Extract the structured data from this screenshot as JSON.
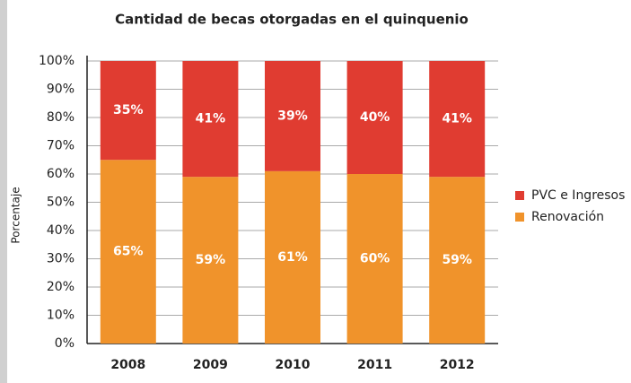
{
  "chart_data": {
    "type": "stacked_bar",
    "title": "Cantidad de becas otorgadas en el quinquenio",
    "ylabel": "Porcentaje",
    "categories": [
      "2008",
      "2009",
      "2010",
      "2011",
      "2012"
    ],
    "series": [
      {
        "name": "Renovación",
        "color": "#f0932b",
        "values": [
          65,
          59,
          61,
          60,
          59
        ],
        "value_labels": [
          "65%",
          "59%",
          "61%",
          "60%",
          "59%"
        ]
      },
      {
        "name": "PVC e Ingresos",
        "color": "#e03c31",
        "values": [
          35,
          41,
          39,
          40,
          41
        ],
        "value_labels": [
          "35%",
          "41%",
          "39%",
          "40%",
          "41%"
        ]
      }
    ],
    "ylim": [
      0,
      100
    ],
    "yticks": [
      {
        "value": 0,
        "label": "0%"
      },
      {
        "value": 10,
        "label": "10%"
      },
      {
        "value": 20,
        "label": "20%"
      },
      {
        "value": 30,
        "label": "30%"
      },
      {
        "value": 40,
        "label": "40%"
      },
      {
        "value": 50,
        "label": "50%"
      },
      {
        "value": 60,
        "label": "60%"
      },
      {
        "value": 70,
        "label": "70%"
      },
      {
        "value": 80,
        "label": "80%"
      },
      {
        "value": 90,
        "label": "90%"
      },
      {
        "value": 100,
        "label": "100%"
      }
    ],
    "grid": true,
    "legend": "right"
  }
}
